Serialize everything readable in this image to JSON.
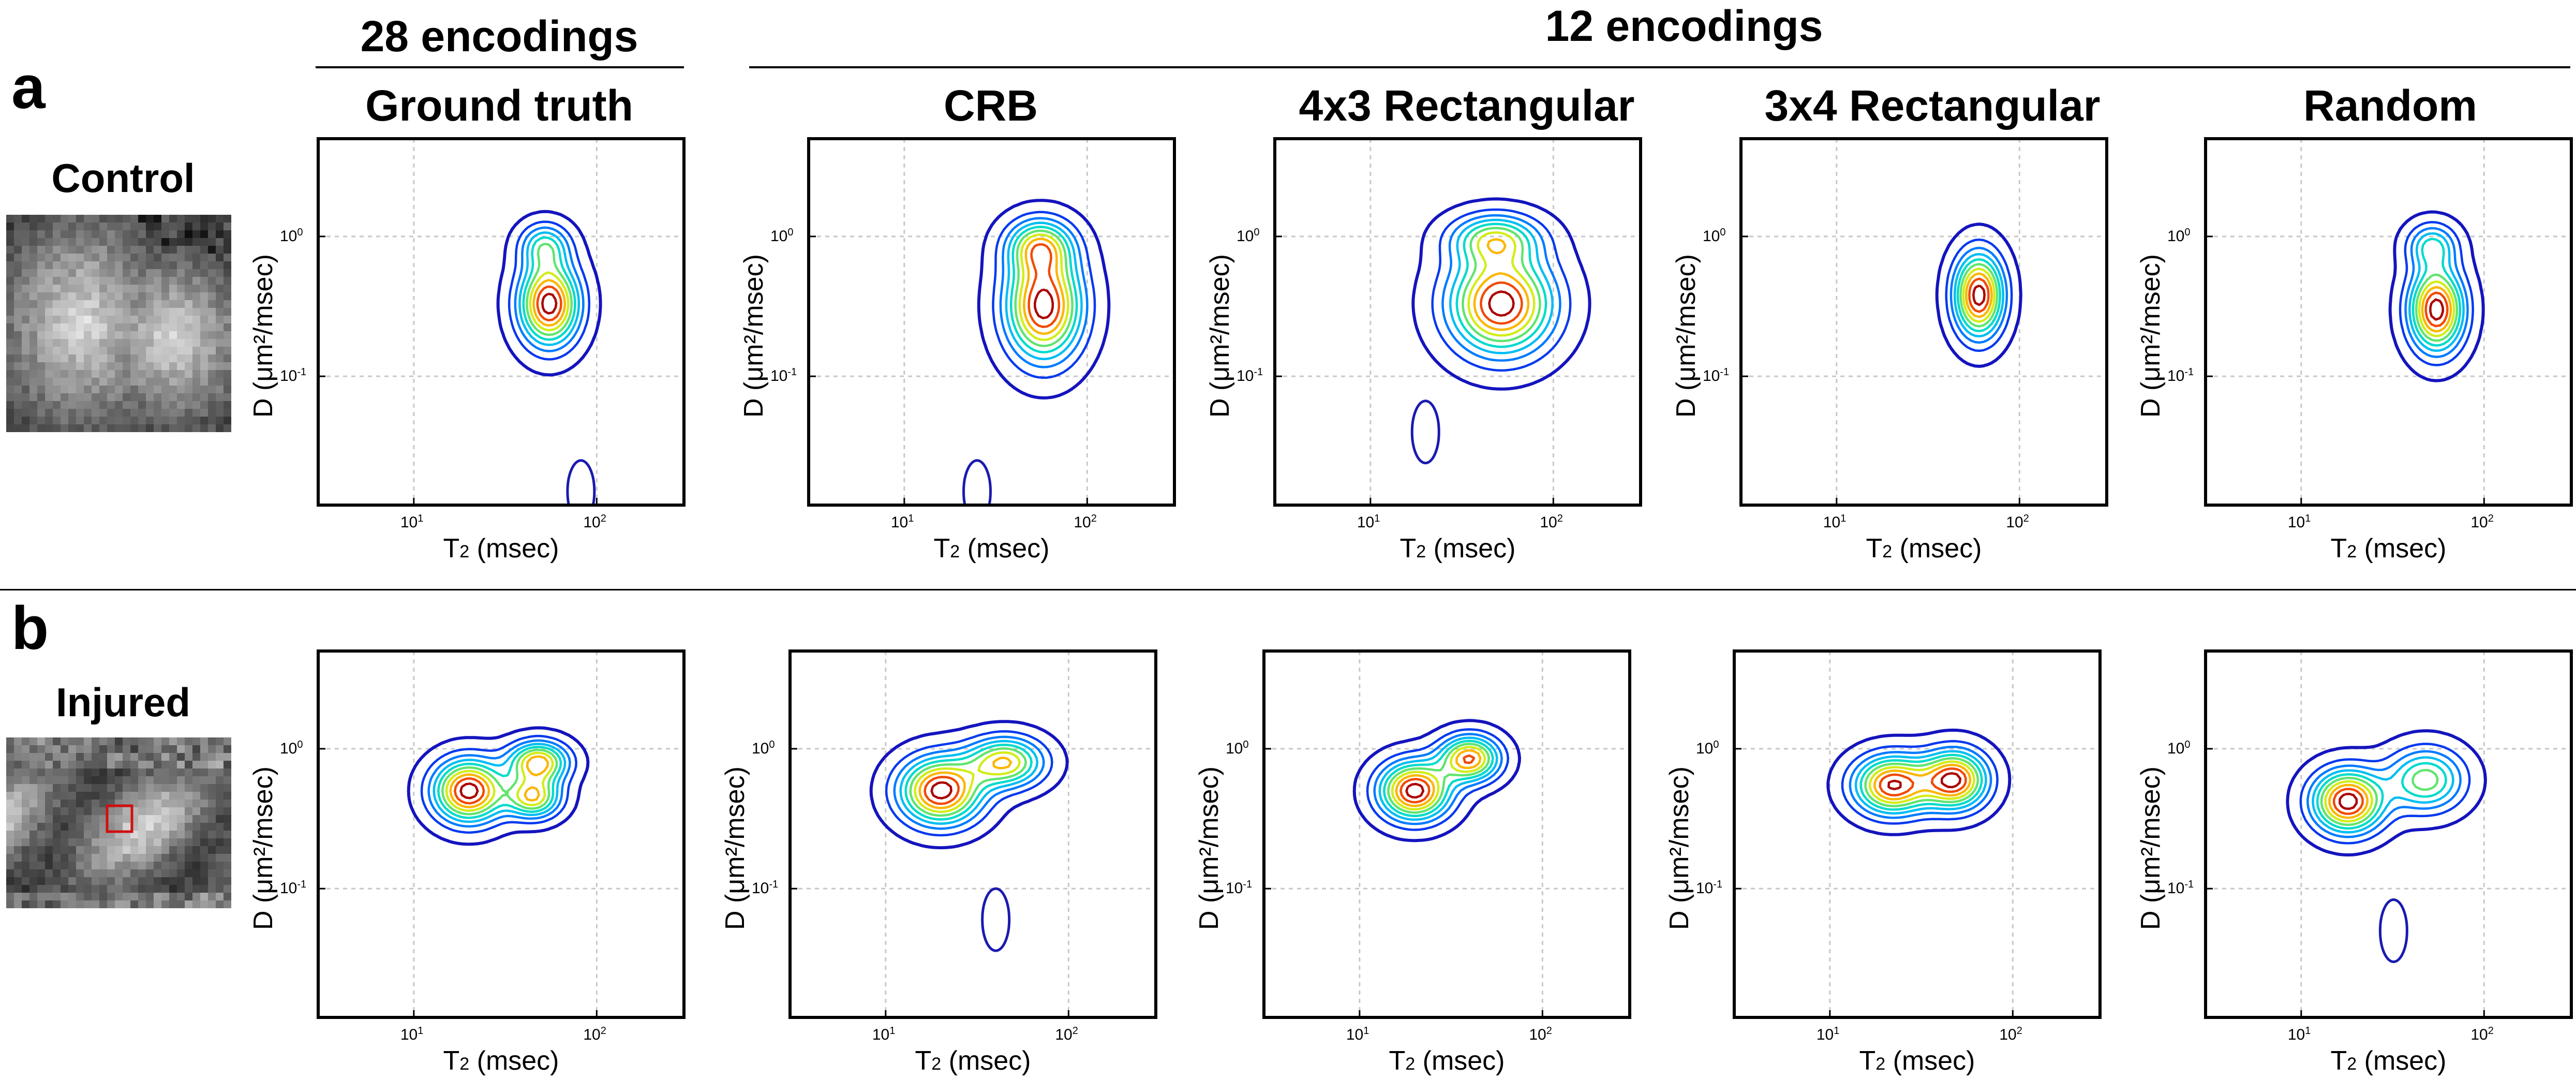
{
  "headers": {
    "group_28": "28 encodings",
    "group_12": "12 encodings",
    "columns": [
      "Ground truth",
      "CRB",
      "4x3  Rectangular",
      "3x4 Rectangular",
      "Random"
    ]
  },
  "rows": [
    {
      "letter": "a",
      "label": "Control"
    },
    {
      "letter": "b",
      "label": "Injured"
    }
  ],
  "axes": {
    "x_label_base": "T",
    "x_label_sub": "2",
    "x_label_unit": " (msec)",
    "y_label": "D (μm²/msec)",
    "x_ticks": [
      {
        "base": "10",
        "exp": "1",
        "value": 10
      },
      {
        "base": "10",
        "exp": "2",
        "value": 100
      }
    ],
    "y_ticks": [
      {
        "base": "10",
        "exp": "0",
        "value": 1
      },
      {
        "base": "10",
        "exp": "-1",
        "value": 0.1
      }
    ],
    "x_range": [
      3,
      300
    ],
    "y_range": [
      0.012,
      5
    ],
    "x_grid": [
      10,
      100
    ],
    "y_grid": [
      1,
      0.1
    ]
  },
  "colors": {
    "outer_contour": "#1a1ab0",
    "peak_contour": "#b40000",
    "roi_box": "#d01010",
    "grid": "#c8c8c8"
  },
  "chart_data": {
    "type": "contour",
    "title": "",
    "xlabel": "T2 (msec)",
    "ylabel": "D (μm²/msec)",
    "xscale": "log",
    "yscale": "log",
    "xlim": [
      3,
      300
    ],
    "ylim": [
      0.012,
      5
    ],
    "levels": 10,
    "panels": [
      {
        "row": "Control",
        "column": "Ground truth",
        "peaks": [
          {
            "t2": 55,
            "d": 0.33,
            "amp": 1.0,
            "st": 0.11,
            "sd": 0.2
          },
          {
            "t2": 52,
            "d": 0.85,
            "amp": 0.45,
            "st": 0.09,
            "sd": 0.11
          }
        ],
        "extra_contours": [
          {
            "t2": 82,
            "d": 0.015,
            "label": "isolated low-D contour"
          }
        ]
      },
      {
        "row": "Control",
        "column": "CRB",
        "peaks": [
          {
            "t2": 58,
            "d": 0.32,
            "amp": 0.9,
            "st": 0.14,
            "sd": 0.26
          },
          {
            "t2": 55,
            "d": 0.85,
            "amp": 0.55,
            "st": 0.12,
            "sd": 0.13
          }
        ],
        "extra_contours": [
          {
            "t2": 25,
            "d": 0.015
          }
        ]
      },
      {
        "row": "Control",
        "column": "4x3  Rectangular",
        "peaks": [
          {
            "t2": 52,
            "d": 0.33,
            "amp": 0.85,
            "st": 0.19,
            "sd": 0.24
          },
          {
            "t2": 48,
            "d": 0.95,
            "amp": 0.5,
            "st": 0.16,
            "sd": 0.12
          }
        ],
        "extra_contours": [
          {
            "t2": 20,
            "d": 0.04
          }
        ]
      },
      {
        "row": "Control",
        "column": "3x4 Rectangular",
        "peaks": [
          {
            "t2": 60,
            "d": 0.38,
            "amp": 1.0,
            "st": 0.09,
            "sd": 0.2
          }
        ],
        "extra_contours": []
      },
      {
        "row": "Control",
        "column": "Random",
        "peaks": [
          {
            "t2": 55,
            "d": 0.3,
            "amp": 1.0,
            "st": 0.1,
            "sd": 0.2
          },
          {
            "t2": 52,
            "d": 0.85,
            "amp": 0.45,
            "st": 0.09,
            "sd": 0.11
          }
        ],
        "extra_contours": []
      },
      {
        "row": "Injured",
        "column": "Ground truth",
        "peaks": [
          {
            "t2": 20,
            "d": 0.5,
            "amp": 1.0,
            "st": 0.13,
            "sd": 0.15
          },
          {
            "t2": 48,
            "d": 0.8,
            "amp": 0.8,
            "st": 0.11,
            "sd": 0.1
          },
          {
            "t2": 45,
            "d": 0.45,
            "amp": 0.72,
            "st": 0.1,
            "sd": 0.1
          }
        ],
        "extra_contours": []
      },
      {
        "row": "Injured",
        "column": "CRB",
        "peaks": [
          {
            "t2": 20,
            "d": 0.5,
            "amp": 1.0,
            "st": 0.15,
            "sd": 0.16
          },
          {
            "t2": 45,
            "d": 0.8,
            "amp": 0.75,
            "st": 0.14,
            "sd": 0.12
          }
        ],
        "extra_contours": [
          {
            "t2": 40,
            "d": 0.06
          }
        ]
      },
      {
        "row": "Injured",
        "column": "4x3  Rectangular",
        "peaks": [
          {
            "t2": 20,
            "d": 0.5,
            "amp": 1.0,
            "st": 0.13,
            "sd": 0.14
          },
          {
            "t2": 40,
            "d": 0.85,
            "amp": 0.85,
            "st": 0.11,
            "sd": 0.11
          }
        ],
        "extra_contours": []
      },
      {
        "row": "Injured",
        "column": "3x4 Rectangular",
        "peaks": [
          {
            "t2": 22,
            "d": 0.55,
            "amp": 0.9,
            "st": 0.14,
            "sd": 0.14
          },
          {
            "t2": 48,
            "d": 0.6,
            "amp": 0.9,
            "st": 0.12,
            "sd": 0.14
          }
        ],
        "extra_contours": []
      },
      {
        "row": "Injured",
        "column": "Random",
        "peaks": [
          {
            "t2": 18,
            "d": 0.42,
            "amp": 1.0,
            "st": 0.13,
            "sd": 0.15
          },
          {
            "t2": 48,
            "d": 0.6,
            "amp": 0.6,
            "st": 0.14,
            "sd": 0.15
          }
        ],
        "extra_contours": [
          {
            "t2": 32,
            "d": 0.05
          }
        ]
      }
    ]
  }
}
